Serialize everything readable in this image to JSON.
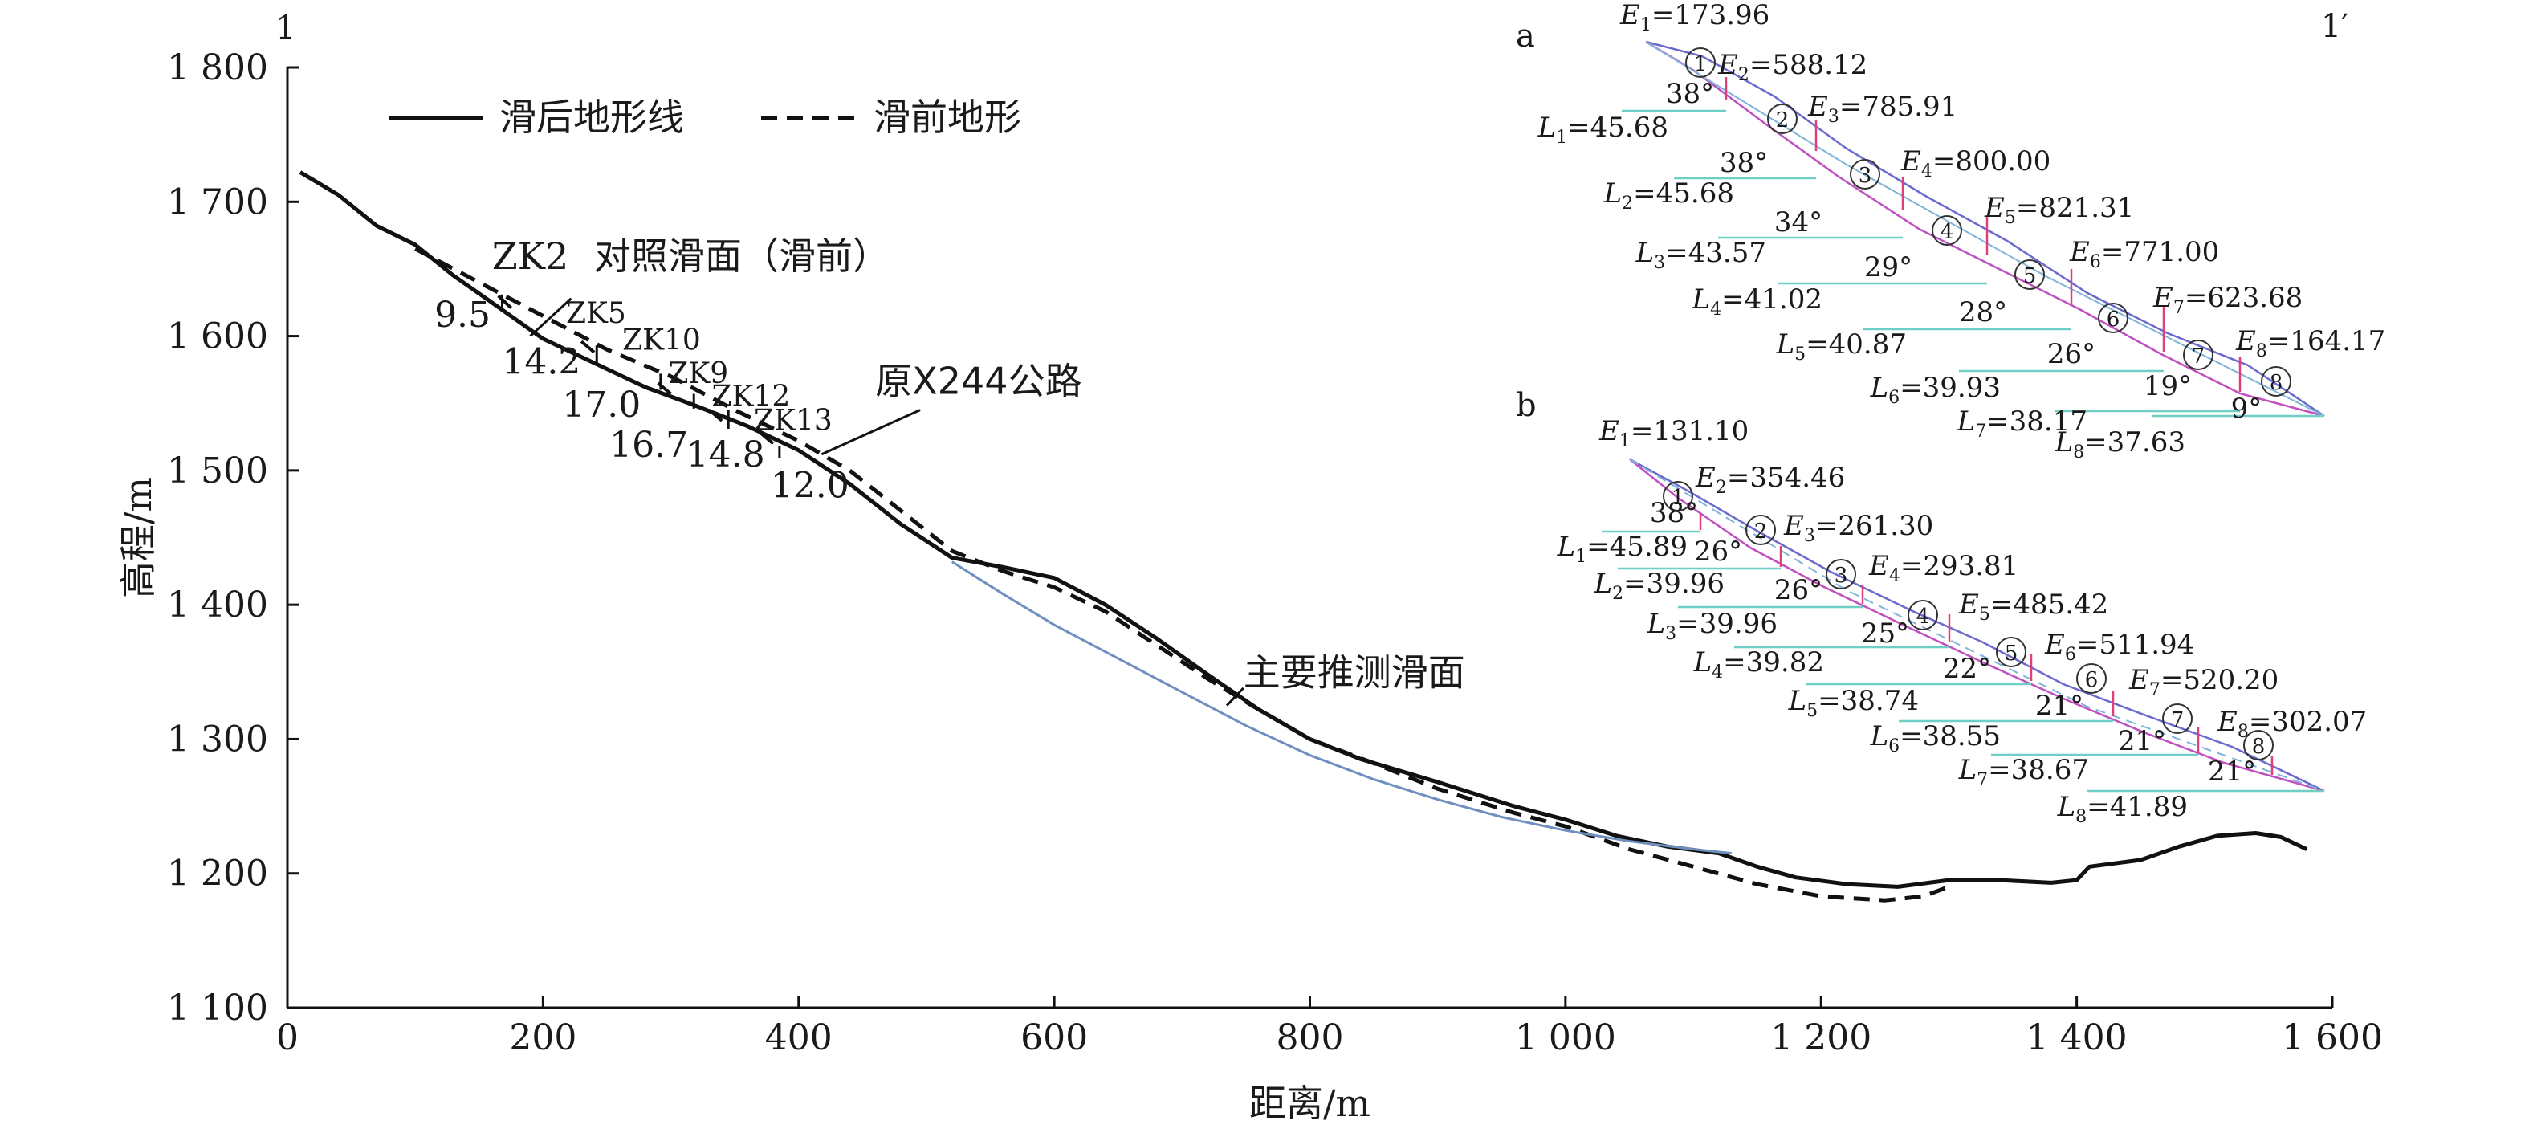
{
  "chart_data": {
    "type": "line",
    "corner_label_left": "1",
    "corner_label_right": "1′",
    "xlabel": "距离/m",
    "ylabel": "高程/m",
    "xlim": [
      0,
      1600
    ],
    "ylim": [
      1100,
      1800
    ],
    "x_ticks": [
      {
        "v": 0,
        "label": "0"
      },
      {
        "v": 200,
        "label": "200"
      },
      {
        "v": 400,
        "label": "400"
      },
      {
        "v": 600,
        "label": "600"
      },
      {
        "v": 800,
        "label": "800"
      },
      {
        "v": 1000,
        "label": "1 000"
      },
      {
        "v": 1200,
        "label": "1 200"
      },
      {
        "v": 1400,
        "label": "1 400"
      },
      {
        "v": 1600,
        "label": "1 600"
      }
    ],
    "y_ticks": [
      {
        "v": 1100,
        "label": "1 100"
      },
      {
        "v": 1200,
        "label": "1 200"
      },
      {
        "v": 1300,
        "label": "1 300"
      },
      {
        "v": 1400,
        "label": "1 400"
      },
      {
        "v": 1500,
        "label": "1 500"
      },
      {
        "v": 1600,
        "label": "1 600"
      },
      {
        "v": 1700,
        "label": "1 700"
      },
      {
        "v": 1800,
        "label": "1 800"
      }
    ],
    "legend": [
      {
        "label": "滑后地形线",
        "style": "solid"
      },
      {
        "label": "滑前地形",
        "style": "dashed"
      }
    ],
    "series": [
      {
        "name": "滑后地形线",
        "style": "solid",
        "color": "#111111",
        "points": [
          [
            10,
            1722
          ],
          [
            40,
            1705
          ],
          [
            70,
            1682
          ],
          [
            100,
            1668
          ],
          [
            130,
            1645
          ],
          [
            160,
            1625
          ],
          [
            200,
            1598
          ],
          [
            240,
            1580
          ],
          [
            280,
            1562
          ],
          [
            320,
            1548
          ],
          [
            360,
            1533
          ],
          [
            400,
            1515
          ],
          [
            440,
            1490
          ],
          [
            480,
            1460
          ],
          [
            520,
            1435
          ],
          [
            560,
            1428
          ],
          [
            600,
            1420
          ],
          [
            640,
            1400
          ],
          [
            680,
            1375
          ],
          [
            720,
            1348
          ],
          [
            760,
            1322
          ],
          [
            800,
            1300
          ],
          [
            840,
            1285
          ],
          [
            900,
            1268
          ],
          [
            960,
            1250
          ],
          [
            1000,
            1240
          ],
          [
            1040,
            1228
          ],
          [
            1080,
            1220
          ],
          [
            1120,
            1215
          ],
          [
            1150,
            1205
          ],
          [
            1180,
            1197
          ],
          [
            1220,
            1192
          ],
          [
            1260,
            1190
          ],
          [
            1300,
            1195
          ],
          [
            1340,
            1195
          ],
          [
            1380,
            1193
          ],
          [
            1400,
            1195
          ],
          [
            1410,
            1205
          ],
          [
            1450,
            1210
          ],
          [
            1480,
            1220
          ],
          [
            1510,
            1228
          ],
          [
            1540,
            1230
          ],
          [
            1560,
            1227
          ],
          [
            1580,
            1218
          ]
        ]
      },
      {
        "name": "滑前地形",
        "style": "dashed",
        "color": "#111111",
        "points": [
          [
            100,
            1665
          ],
          [
            150,
            1640
          ],
          [
            200,
            1615
          ],
          [
            250,
            1590
          ],
          [
            300,
            1570
          ],
          [
            350,
            1545
          ],
          [
            400,
            1522
          ],
          [
            440,
            1500
          ],
          [
            480,
            1470
          ],
          [
            520,
            1440
          ],
          [
            560,
            1425
          ],
          [
            600,
            1413
          ],
          [
            640,
            1395
          ],
          [
            680,
            1370
          ],
          [
            720,
            1345
          ],
          [
            760,
            1322
          ],
          [
            800,
            1300
          ],
          [
            850,
            1282
          ],
          [
            900,
            1263
          ],
          [
            960,
            1245
          ],
          [
            1000,
            1235
          ],
          [
            1050,
            1218
          ],
          [
            1100,
            1205
          ],
          [
            1150,
            1192
          ],
          [
            1200,
            1183
          ],
          [
            1250,
            1180
          ],
          [
            1280,
            1183
          ],
          [
            1300,
            1190
          ]
        ]
      },
      {
        "name": "主要推测滑面",
        "style": "solid",
        "color": "#6f8fbf",
        "points": [
          [
            520,
            1432
          ],
          [
            560,
            1408
          ],
          [
            600,
            1385
          ],
          [
            650,
            1360
          ],
          [
            700,
            1335
          ],
          [
            750,
            1310
          ],
          [
            800,
            1288
          ],
          [
            850,
            1270
          ],
          [
            900,
            1255
          ],
          [
            950,
            1242
          ],
          [
            1000,
            1232
          ],
          [
            1050,
            1224
          ],
          [
            1100,
            1218
          ],
          [
            1130,
            1215
          ]
        ]
      },
      {
        "name": "ZK2 对照滑面（滑前）",
        "style": "short-segments",
        "color": "#111111",
        "points": [
          [
            165,
            1630
          ],
          [
            175,
            1621
          ],
          [
            230,
            1596
          ],
          [
            240,
            1588
          ],
          [
            290,
            1565
          ],
          [
            300,
            1557
          ],
          [
            330,
            1545
          ],
          [
            340,
            1537
          ],
          [
            370,
            1528
          ],
          [
            380,
            1520
          ]
        ]
      }
    ],
    "annotations": [
      {
        "text": "ZK2",
        "x": 160,
        "y": 1650
      },
      {
        "text": "对照滑面（滑前）",
        "x": 240,
        "y": 1650
      },
      {
        "text": "9.5",
        "x": 115,
        "y": 1607
      },
      {
        "text": "ZK5",
        "x": 218,
        "y": 1610
      },
      {
        "text": "ZK10",
        "x": 262,
        "y": 1590
      },
      {
        "text": "14.2",
        "x": 168,
        "y": 1572
      },
      {
        "text": "ZK9",
        "x": 298,
        "y": 1565
      },
      {
        "text": "ZK12",
        "x": 332,
        "y": 1548
      },
      {
        "text": "17.0",
        "x": 215,
        "y": 1540
      },
      {
        "text": "ZK13",
        "x": 365,
        "y": 1530
      },
      {
        "text": "16.7",
        "x": 252,
        "y": 1510
      },
      {
        "text": "14.8",
        "x": 312,
        "y": 1503
      },
      {
        "text": "12.0",
        "x": 378,
        "y": 1480
      },
      {
        "text": "原X244公路",
        "x": 460,
        "y": 1557
      },
      {
        "text": "主要推测滑面",
        "x": 748,
        "y": 1340
      }
    ],
    "leaders": [
      {
        "from": [
          190,
          1600
        ],
        "to": [
          222,
          1628
        ]
      },
      {
        "from": [
          418,
          1512
        ],
        "to": [
          495,
          1545
        ]
      },
      {
        "from": [
          735,
          1325
        ],
        "to": [
          748,
          1338
        ]
      }
    ],
    "ticks": [
      {
        "x": 168,
        "top": 1631,
        "bottom": 1621
      },
      {
        "x": 242,
        "top": 1593,
        "bottom": 1579
      },
      {
        "x": 292,
        "top": 1572,
        "bottom": 1560
      },
      {
        "x": 318,
        "top": 1557,
        "bottom": 1546
      },
      {
        "x": 345,
        "top": 1545,
        "bottom": 1531
      },
      {
        "x": 385,
        "top": 1518,
        "bottom": 1509
      }
    ],
    "insets": [
      {
        "label": "a",
        "E": [
          {
            "name": "E",
            "sub": "1",
            "value": "173.96"
          },
          {
            "name": "E",
            "sub": "2",
            "value": "588.12"
          },
          {
            "name": "E",
            "sub": "3",
            "value": "785.91"
          },
          {
            "name": "E",
            "sub": "4",
            "value": "800.00"
          },
          {
            "name": "E",
            "sub": "5",
            "value": "821.31"
          },
          {
            "name": "E",
            "sub": "6",
            "value": "771.00"
          },
          {
            "name": "E",
            "sub": "7",
            "value": "623.68"
          },
          {
            "name": "E",
            "sub": "8",
            "value": "164.17"
          }
        ],
        "L": [
          {
            "name": "L",
            "sub": "1",
            "value": "45.68"
          },
          {
            "name": "L",
            "sub": "2",
            "value": "45.68"
          },
          {
            "name": "L",
            "sub": "3",
            "value": "43.57"
          },
          {
            "name": "L",
            "sub": "4",
            "value": "41.02"
          },
          {
            "name": "L",
            "sub": "5",
            "value": "40.87"
          },
          {
            "name": "L",
            "sub": "6",
            "value": "39.93"
          },
          {
            "name": "L",
            "sub": "7",
            "value": "38.17"
          },
          {
            "name": "L",
            "sub": "8",
            "value": "37.63"
          }
        ],
        "angles": [
          "38°",
          "38°",
          "34°",
          "29°",
          "28°",
          "26°",
          "19°",
          "9°"
        ],
        "slices": [
          "①",
          "②",
          "③",
          "④",
          "⑤",
          "⑥",
          "⑦",
          "⑧"
        ]
      },
      {
        "label": "b",
        "E": [
          {
            "name": "E",
            "sub": "1",
            "value": "131.10"
          },
          {
            "name": "E",
            "sub": "2",
            "value": "354.46"
          },
          {
            "name": "E",
            "sub": "3",
            "value": "261.30"
          },
          {
            "name": "E",
            "sub": "4",
            "value": "293.81"
          },
          {
            "name": "E",
            "sub": "5",
            "value": "485.42"
          },
          {
            "name": "E",
            "sub": "6",
            "value": "511.94"
          },
          {
            "name": "E",
            "sub": "7",
            "value": "520.20"
          },
          {
            "name": "E",
            "sub": "8",
            "value": "302.07"
          }
        ],
        "L": [
          {
            "name": "L",
            "sub": "1",
            "value": "45.89"
          },
          {
            "name": "L",
            "sub": "2",
            "value": "39.96"
          },
          {
            "name": "L",
            "sub": "3",
            "value": "39.96"
          },
          {
            "name": "L",
            "sub": "4",
            "value": "39.82"
          },
          {
            "name": "L",
            "sub": "5",
            "value": "38.74"
          },
          {
            "name": "L",
            "sub": "6",
            "value": "38.55"
          },
          {
            "name": "L",
            "sub": "7",
            "value": "38.67"
          },
          {
            "name": "L",
            "sub": "8",
            "value": "41.89"
          }
        ],
        "angles": [
          "38°",
          "26°",
          "26°",
          "25°",
          "22°",
          "21°",
          "21°",
          "21°"
        ],
        "slices": [
          "①",
          "②",
          "③",
          "④",
          "⑤",
          "⑥",
          "⑦",
          "⑧"
        ]
      }
    ]
  }
}
